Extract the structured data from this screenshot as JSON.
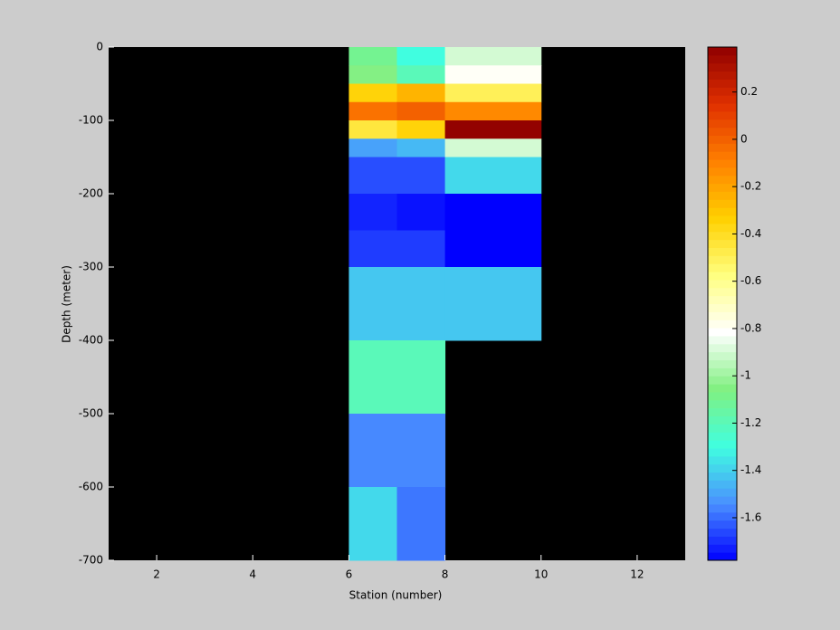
{
  "chart_data": {
    "type": "heatmap",
    "xlabel": "Station (number)",
    "ylabel": "Depth (meter)",
    "x_edges": [
      6,
      7,
      8,
      10
    ],
    "y_edges": [
      0,
      -25,
      -50,
      -75,
      -100,
      -125,
      -150,
      -200,
      -250,
      -300,
      -400,
      -500,
      -600,
      -700
    ],
    "z": [
      [
        -1.1,
        -1.3,
        -0.9
      ],
      [
        -1.05,
        -1.2,
        -0.8
      ],
      [
        -0.35,
        -0.25,
        -0.5
      ],
      [
        -0.05,
        0.0,
        -0.12
      ],
      [
        -0.45,
        -0.35,
        0.38
      ],
      [
        -1.5,
        -1.45,
        -0.9
      ],
      [
        -1.65,
        -1.65,
        -1.38
      ],
      [
        -1.72,
        -1.75,
        -1.78
      ],
      [
        -1.68,
        -1.68,
        -1.78
      ],
      [
        -1.42,
        -1.42,
        -1.42
      ],
      [
        -1.2,
        -1.2,
        null
      ],
      [
        -1.55,
        -1.55,
        null
      ],
      [
        -1.38,
        -1.58,
        null
      ]
    ],
    "xlim": [
      1,
      13
    ],
    "xticks": [
      2,
      4,
      6,
      8,
      10,
      12
    ],
    "ylim": [
      -700,
      0
    ],
    "yticks": [
      0,
      -100,
      -200,
      -300,
      -400,
      -500,
      -600,
      -700
    ],
    "clim": [
      -1.78,
      0.39
    ],
    "cticks": [
      0.2,
      0,
      -0.2,
      -0.4,
      -0.6,
      -0.8,
      -1,
      -1.2,
      -1.4,
      -1.6
    ],
    "colormap": [
      "#0000ff",
      "#4a90ff",
      "#40ffe0",
      "#80f080",
      "#ffffff",
      "#ffff80",
      "#ffd000",
      "#ff8000",
      "#e03000",
      "#900000"
    ],
    "nan_color": "#000000",
    "background": "#cccccc"
  }
}
